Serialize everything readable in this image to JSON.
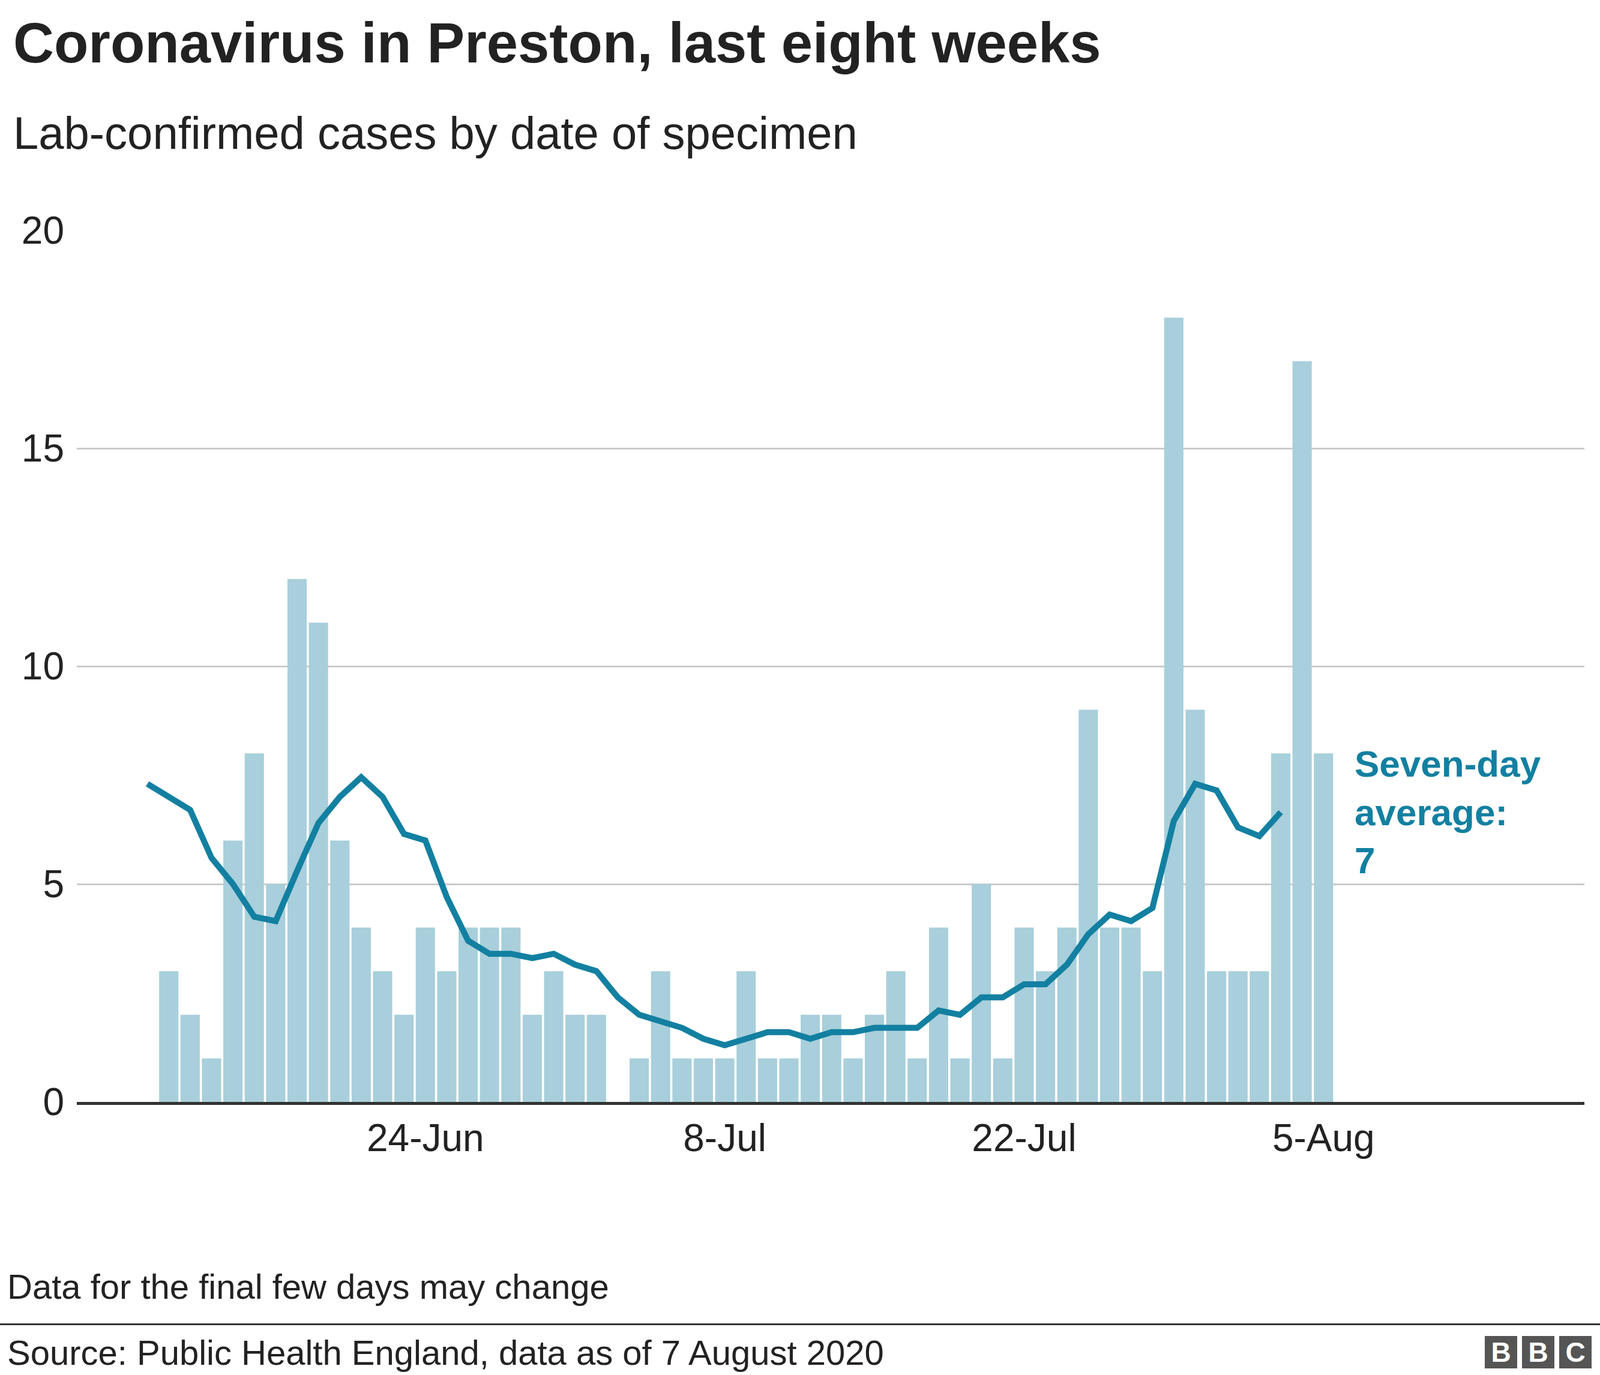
{
  "chart_data": {
    "type": "bar",
    "title": "Coronavirus in Preston, last eight weeks",
    "subtitle": "Lab-confirmed cases by date of specimen",
    "categories": [
      null,
      null,
      null,
      null,
      null,
      null,
      null,
      null,
      null,
      null,
      null,
      null,
      null,
      "24-Jun",
      null,
      null,
      null,
      null,
      null,
      null,
      null,
      null,
      null,
      null,
      null,
      null,
      null,
      "8-Jul",
      null,
      null,
      null,
      null,
      null,
      null,
      null,
      null,
      null,
      null,
      null,
      null,
      null,
      "22-Jul",
      null,
      null,
      null,
      null,
      null,
      null,
      null,
      null,
      null,
      null,
      null,
      null,
      null,
      "5-Aug"
    ],
    "series": [
      {
        "type": "bar",
        "color": "#a8cfdb",
        "values": [
          null,
          3,
          2,
          1,
          6,
          8,
          5,
          12,
          11,
          6,
          4,
          3,
          2,
          4,
          3,
          4,
          4,
          4,
          2,
          3,
          2,
          2,
          0,
          1,
          3,
          1,
          1,
          1,
          3,
          1,
          1,
          2,
          2,
          1,
          2,
          3,
          1,
          4,
          1,
          5,
          1,
          4,
          3,
          4,
          9,
          4,
          4,
          3,
          18,
          9,
          3,
          3,
          3,
          8,
          17,
          8
        ]
      },
      {
        "type": "line",
        "color": "#1380a1",
        "values": [
          7.3,
          7.0,
          6.7,
          5.6,
          5.0,
          4.25,
          4.15,
          5.3,
          6.4,
          7.0,
          7.45,
          7.0,
          6.15,
          6.0,
          4.7,
          3.7,
          3.4,
          3.4,
          3.3,
          3.4,
          3.15,
          3.0,
          2.4,
          2.0,
          1.85,
          1.7,
          1.45,
          1.3,
          1.45,
          1.6,
          1.6,
          1.45,
          1.6,
          1.6,
          1.7,
          1.7,
          1.7,
          2.1,
          2.0,
          2.4,
          2.4,
          2.7,
          2.7,
          3.15,
          3.85,
          4.3,
          4.15,
          4.45,
          6.45,
          7.3,
          7.15,
          6.3,
          6.1,
          6.65,
          null,
          null
        ]
      }
    ],
    "annotation": [
      "Seven-day",
      "average:",
      "7"
    ],
    "ylim": [
      0,
      20
    ],
    "yticks": [
      0,
      5,
      10,
      15,
      20
    ],
    "grid": true,
    "note": "Data for the final few days may change",
    "source": "Source: Public Health England, data as of 7 August 2020",
    "logo": "BBC"
  }
}
